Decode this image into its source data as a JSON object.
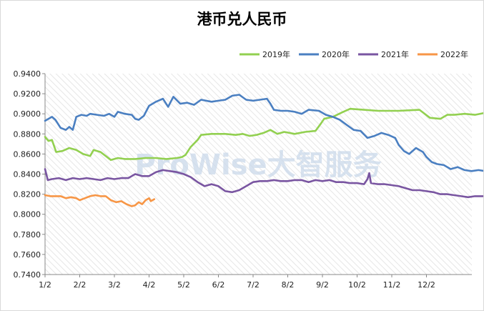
{
  "watermark": "ProWise大智服务",
  "chart_data": {
    "type": "line",
    "title": "港币兑人民币",
    "xlabel": "",
    "ylabel": "",
    "categories": [
      "1/2",
      "2/2",
      "3/2",
      "4/2",
      "5/2",
      "6/2",
      "7/2",
      "8/2",
      "9/2",
      "10/2",
      "11/2",
      "12/2"
    ],
    "ylim": [
      0.74,
      0.94
    ],
    "yticks": [
      "0.9400",
      "0.9200",
      "0.9000",
      "0.8800",
      "0.8600",
      "0.8400",
      "0.8200",
      "0.8000",
      "0.7800",
      "0.7600",
      "0.7400"
    ],
    "legend_position": "top-right",
    "grid": false,
    "series": [
      {
        "name": "2019年",
        "color": "#92d050",
        "points": [
          [
            0,
            0.877
          ],
          [
            0.1,
            0.873
          ],
          [
            0.2,
            0.874
          ],
          [
            0.32,
            0.862
          ],
          [
            0.5,
            0.863
          ],
          [
            0.7,
            0.866
          ],
          [
            0.9,
            0.864
          ],
          [
            1.1,
            0.86
          ],
          [
            1.3,
            0.858
          ],
          [
            1.4,
            0.864
          ],
          [
            1.6,
            0.862
          ],
          [
            1.75,
            0.858
          ],
          [
            1.9,
            0.854
          ],
          [
            2.1,
            0.856
          ],
          [
            2.3,
            0.855
          ],
          [
            2.6,
            0.855
          ],
          [
            2.9,
            0.856
          ],
          [
            3.2,
            0.856
          ],
          [
            3.5,
            0.855
          ],
          [
            3.8,
            0.856
          ],
          [
            3.95,
            0.857
          ],
          [
            4.05,
            0.859
          ],
          [
            4.2,
            0.867
          ],
          [
            4.4,
            0.874
          ],
          [
            4.5,
            0.879
          ],
          [
            4.8,
            0.88
          ],
          [
            5.2,
            0.88
          ],
          [
            5.5,
            0.879
          ],
          [
            5.7,
            0.88
          ],
          [
            5.9,
            0.878
          ],
          [
            6.1,
            0.879
          ],
          [
            6.3,
            0.881
          ],
          [
            6.5,
            0.884
          ],
          [
            6.7,
            0.88
          ],
          [
            6.9,
            0.882
          ],
          [
            7.2,
            0.88
          ],
          [
            7.5,
            0.882
          ],
          [
            7.8,
            0.883
          ],
          [
            7.95,
            0.89
          ],
          [
            8.05,
            0.895
          ],
          [
            8.3,
            0.897
          ],
          [
            8.6,
            0.902
          ],
          [
            8.8,
            0.905
          ],
          [
            9.2,
            0.904
          ],
          [
            9.6,
            0.903
          ],
          [
            10.2,
            0.903
          ],
          [
            10.8,
            0.904
          ],
          [
            11.1,
            0.896
          ],
          [
            11.4,
            0.895
          ],
          [
            11.6,
            0.899
          ],
          [
            11.8,
            0.899
          ],
          [
            12.1,
            0.9
          ],
          [
            12.4,
            0.899
          ],
          [
            12.7,
            0.901
          ],
          [
            12.8,
            0.898
          ]
        ]
      },
      {
        "name": "2020年",
        "color": "#4a7fc1",
        "points": [
          [
            0,
            0.893
          ],
          [
            0.2,
            0.897
          ],
          [
            0.3,
            0.894
          ],
          [
            0.45,
            0.886
          ],
          [
            0.6,
            0.884
          ],
          [
            0.7,
            0.887
          ],
          [
            0.8,
            0.884
          ],
          [
            0.9,
            0.897
          ],
          [
            1.05,
            0.899
          ],
          [
            1.2,
            0.898
          ],
          [
            1.3,
            0.9
          ],
          [
            1.5,
            0.899
          ],
          [
            1.7,
            0.898
          ],
          [
            1.85,
            0.9
          ],
          [
            2.0,
            0.897
          ],
          [
            2.1,
            0.902
          ],
          [
            2.3,
            0.9
          ],
          [
            2.5,
            0.899
          ],
          [
            2.6,
            0.895
          ],
          [
            2.7,
            0.894
          ],
          [
            2.85,
            0.898
          ],
          [
            3.0,
            0.908
          ],
          [
            3.2,
            0.912
          ],
          [
            3.4,
            0.915
          ],
          [
            3.55,
            0.907
          ],
          [
            3.7,
            0.917
          ],
          [
            3.9,
            0.91
          ],
          [
            4.1,
            0.911
          ],
          [
            4.3,
            0.909
          ],
          [
            4.5,
            0.914
          ],
          [
            4.8,
            0.912
          ],
          [
            5.0,
            0.913
          ],
          [
            5.2,
            0.914
          ],
          [
            5.4,
            0.918
          ],
          [
            5.6,
            0.919
          ],
          [
            5.8,
            0.914
          ],
          [
            6.0,
            0.913
          ],
          [
            6.2,
            0.914
          ],
          [
            6.4,
            0.915
          ],
          [
            6.5,
            0.91
          ],
          [
            6.6,
            0.904
          ],
          [
            6.8,
            0.903
          ],
          [
            7.0,
            0.903
          ],
          [
            7.2,
            0.902
          ],
          [
            7.4,
            0.9
          ],
          [
            7.6,
            0.904
          ],
          [
            7.9,
            0.903
          ],
          [
            8.1,
            0.899
          ],
          [
            8.3,
            0.897
          ],
          [
            8.5,
            0.894
          ],
          [
            8.7,
            0.889
          ],
          [
            8.9,
            0.884
          ],
          [
            9.1,
            0.883
          ],
          [
            9.3,
            0.876
          ],
          [
            9.5,
            0.878
          ],
          [
            9.7,
            0.881
          ],
          [
            9.9,
            0.879
          ],
          [
            10.1,
            0.876
          ],
          [
            10.2,
            0.869
          ],
          [
            10.35,
            0.863
          ],
          [
            10.5,
            0.86
          ],
          [
            10.7,
            0.866
          ],
          [
            10.9,
            0.862
          ],
          [
            11.0,
            0.857
          ],
          [
            11.15,
            0.852
          ],
          [
            11.3,
            0.85
          ],
          [
            11.5,
            0.849
          ],
          [
            11.7,
            0.845
          ],
          [
            11.9,
            0.847
          ],
          [
            12.1,
            0.844
          ],
          [
            12.3,
            0.843
          ],
          [
            12.5,
            0.844
          ],
          [
            12.7,
            0.843
          ],
          [
            12.8,
            0.842
          ]
        ]
      },
      {
        "name": "2021年",
        "color": "#7955a1",
        "points": [
          [
            0,
            0.845
          ],
          [
            0.08,
            0.834
          ],
          [
            0.2,
            0.835
          ],
          [
            0.4,
            0.836
          ],
          [
            0.6,
            0.834
          ],
          [
            0.8,
            0.836
          ],
          [
            1.0,
            0.835
          ],
          [
            1.2,
            0.836
          ],
          [
            1.4,
            0.835
          ],
          [
            1.6,
            0.834
          ],
          [
            1.8,
            0.836
          ],
          [
            2.0,
            0.835
          ],
          [
            2.2,
            0.836
          ],
          [
            2.4,
            0.836
          ],
          [
            2.6,
            0.84
          ],
          [
            2.8,
            0.838
          ],
          [
            3.0,
            0.838
          ],
          [
            3.2,
            0.842
          ],
          [
            3.4,
            0.844
          ],
          [
            3.6,
            0.843
          ],
          [
            3.8,
            0.842
          ],
          [
            4.0,
            0.84
          ],
          [
            4.2,
            0.837
          ],
          [
            4.4,
            0.832
          ],
          [
            4.6,
            0.828
          ],
          [
            4.8,
            0.83
          ],
          [
            5.0,
            0.828
          ],
          [
            5.2,
            0.823
          ],
          [
            5.4,
            0.822
          ],
          [
            5.6,
            0.824
          ],
          [
            5.8,
            0.828
          ],
          [
            6.0,
            0.832
          ],
          [
            6.2,
            0.833
          ],
          [
            6.4,
            0.833
          ],
          [
            6.6,
            0.834
          ],
          [
            6.8,
            0.833
          ],
          [
            7.0,
            0.833
          ],
          [
            7.2,
            0.834
          ],
          [
            7.4,
            0.834
          ],
          [
            7.6,
            0.832
          ],
          [
            7.8,
            0.834
          ],
          [
            8.0,
            0.833
          ],
          [
            8.2,
            0.834
          ],
          [
            8.4,
            0.832
          ],
          [
            8.6,
            0.832
          ],
          [
            8.8,
            0.831
          ],
          [
            9.0,
            0.831
          ],
          [
            9.2,
            0.83
          ],
          [
            9.3,
            0.835
          ],
          [
            9.35,
            0.841
          ],
          [
            9.4,
            0.831
          ],
          [
            9.6,
            0.83
          ],
          [
            9.8,
            0.83
          ],
          [
            10.0,
            0.829
          ],
          [
            10.2,
            0.828
          ],
          [
            10.4,
            0.826
          ],
          [
            10.6,
            0.824
          ],
          [
            10.8,
            0.824
          ],
          [
            11.0,
            0.823
          ],
          [
            11.2,
            0.822
          ],
          [
            11.4,
            0.82
          ],
          [
            11.6,
            0.82
          ],
          [
            11.8,
            0.819
          ],
          [
            12.0,
            0.818
          ],
          [
            12.2,
            0.817
          ],
          [
            12.4,
            0.818
          ],
          [
            12.6,
            0.818
          ],
          [
            12.8,
            0.818
          ]
        ]
      },
      {
        "name": "2022年",
        "color": "#f79646",
        "points": [
          [
            0,
            0.819
          ],
          [
            0.15,
            0.818
          ],
          [
            0.3,
            0.818
          ],
          [
            0.45,
            0.818
          ],
          [
            0.6,
            0.816
          ],
          [
            0.75,
            0.817
          ],
          [
            0.9,
            0.816
          ],
          [
            1.0,
            0.814
          ],
          [
            1.15,
            0.816
          ],
          [
            1.3,
            0.818
          ],
          [
            1.45,
            0.819
          ],
          [
            1.6,
            0.818
          ],
          [
            1.75,
            0.818
          ],
          [
            1.9,
            0.814
          ],
          [
            2.05,
            0.812
          ],
          [
            2.2,
            0.813
          ],
          [
            2.35,
            0.81
          ],
          [
            2.5,
            0.808
          ],
          [
            2.6,
            0.809
          ],
          [
            2.7,
            0.812
          ],
          [
            2.8,
            0.81
          ],
          [
            2.9,
            0.814
          ],
          [
            3.0,
            0.816
          ],
          [
            3.05,
            0.813
          ],
          [
            3.15,
            0.815
          ]
        ]
      }
    ]
  }
}
